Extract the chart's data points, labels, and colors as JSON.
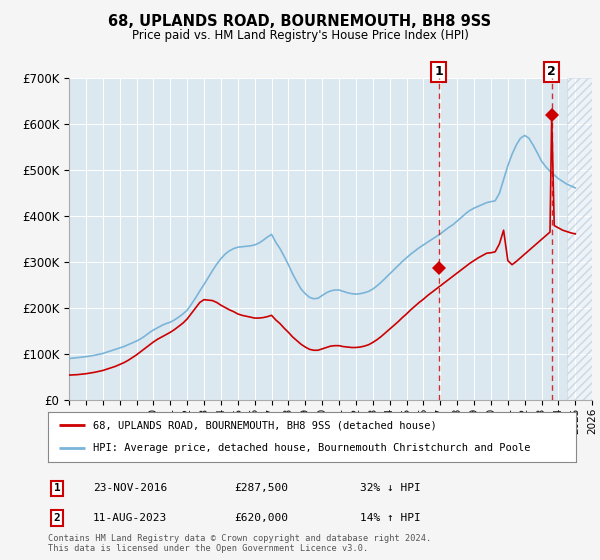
{
  "title": "68, UPLANDS ROAD, BOURNEMOUTH, BH8 9SS",
  "subtitle": "Price paid vs. HM Land Registry's House Price Index (HPI)",
  "footnote": "Contains HM Land Registry data © Crown copyright and database right 2024.\nThis data is licensed under the Open Government Licence v3.0.",
  "legend_line1": "68, UPLANDS ROAD, BOURNEMOUTH, BH8 9SS (detached house)",
  "legend_line2": "HPI: Average price, detached house, Bournemouth Christchurch and Poole",
  "transaction1_date": "23-NOV-2016",
  "transaction1_price": "£287,500",
  "transaction1_hpi": "32% ↓ HPI",
  "transaction2_date": "11-AUG-2023",
  "transaction2_price": "£620,000",
  "transaction2_hpi": "14% ↑ HPI",
  "hpi_color": "#7ab4d8",
  "price_color": "#cc0000",
  "background_color": "#f5f5f5",
  "plot_bg_color": "#dce8f0",
  "hatch_color": "#bbccdd",
  "ylim": [
    0,
    700000
  ],
  "yticks": [
    0,
    100000,
    200000,
    300000,
    400000,
    500000,
    600000,
    700000
  ],
  "transaction1_year": 2016.9,
  "transaction1_value": 287500,
  "transaction2_year": 2023.6,
  "transaction2_value": 620000,
  "hatch_start": 2024.5,
  "xmin": 1995,
  "xmax": 2026,
  "hpi_data_x": [
    1995.0,
    1995.25,
    1995.5,
    1995.75,
    1996.0,
    1996.25,
    1996.5,
    1996.75,
    1997.0,
    1997.25,
    1997.5,
    1997.75,
    1998.0,
    1998.25,
    1998.5,
    1998.75,
    1999.0,
    1999.25,
    1999.5,
    1999.75,
    2000.0,
    2000.25,
    2000.5,
    2000.75,
    2001.0,
    2001.25,
    2001.5,
    2001.75,
    2002.0,
    2002.25,
    2002.5,
    2002.75,
    2003.0,
    2003.25,
    2003.5,
    2003.75,
    2004.0,
    2004.25,
    2004.5,
    2004.75,
    2005.0,
    2005.25,
    2005.5,
    2005.75,
    2006.0,
    2006.25,
    2006.5,
    2006.75,
    2007.0,
    2007.25,
    2007.5,
    2007.75,
    2008.0,
    2008.25,
    2008.5,
    2008.75,
    2009.0,
    2009.25,
    2009.5,
    2009.75,
    2010.0,
    2010.25,
    2010.5,
    2010.75,
    2011.0,
    2011.25,
    2011.5,
    2011.75,
    2012.0,
    2012.25,
    2012.5,
    2012.75,
    2013.0,
    2013.25,
    2013.5,
    2013.75,
    2014.0,
    2014.25,
    2014.5,
    2014.75,
    2015.0,
    2015.25,
    2015.5,
    2015.75,
    2016.0,
    2016.25,
    2016.5,
    2016.75,
    2017.0,
    2017.25,
    2017.5,
    2017.75,
    2018.0,
    2018.25,
    2018.5,
    2018.75,
    2019.0,
    2019.25,
    2019.5,
    2019.75,
    2020.0,
    2020.25,
    2020.5,
    2020.75,
    2021.0,
    2021.25,
    2021.5,
    2021.75,
    2022.0,
    2022.25,
    2022.5,
    2022.75,
    2023.0,
    2023.25,
    2023.5,
    2023.75,
    2024.0,
    2024.25,
    2024.5,
    2024.75,
    2025.0
  ],
  "hpi_data_y": [
    91000,
    92000,
    93000,
    94000,
    95000,
    96500,
    98000,
    100000,
    102000,
    105000,
    108000,
    111000,
    114000,
    117000,
    121000,
    125000,
    129000,
    134000,
    140000,
    147000,
    153000,
    158000,
    163000,
    167000,
    170000,
    175000,
    181000,
    188000,
    196000,
    209000,
    223000,
    238000,
    252000,
    267000,
    282000,
    296000,
    308000,
    318000,
    325000,
    330000,
    333000,
    334000,
    335000,
    336000,
    338000,
    342000,
    348000,
    355000,
    361000,
    344000,
    330000,
    313000,
    295000,
    275000,
    258000,
    242000,
    232000,
    224000,
    221000,
    222000,
    228000,
    234000,
    238000,
    240000,
    240000,
    237000,
    234000,
    232000,
    231000,
    232000,
    234000,
    237000,
    242000,
    249000,
    257000,
    266000,
    275000,
    284000,
    293000,
    302000,
    310000,
    318000,
    325000,
    332000,
    338000,
    344000,
    350000,
    356000,
    362000,
    369000,
    376000,
    382000,
    390000,
    398000,
    406000,
    413000,
    418000,
    422000,
    426000,
    430000,
    432000,
    434000,
    450000,
    480000,
    510000,
    535000,
    555000,
    570000,
    576000,
    570000,
    555000,
    538000,
    520000,
    508000,
    498000,
    490000,
    482000,
    476000,
    470000,
    466000,
    462000
  ],
  "price_data_x": [
    1995.0,
    1995.25,
    1995.5,
    1995.75,
    1996.0,
    1996.25,
    1996.5,
    1996.75,
    1997.0,
    1997.25,
    1997.5,
    1997.75,
    1998.0,
    1998.25,
    1998.5,
    1998.75,
    1999.0,
    1999.25,
    1999.5,
    1999.75,
    2000.0,
    2000.25,
    2000.5,
    2000.75,
    2001.0,
    2001.25,
    2001.5,
    2001.75,
    2002.0,
    2002.25,
    2002.5,
    2002.75,
    2003.0,
    2003.25,
    2003.5,
    2003.75,
    2004.0,
    2004.25,
    2004.5,
    2004.75,
    2005.0,
    2005.25,
    2005.5,
    2005.75,
    2006.0,
    2006.25,
    2006.5,
    2006.75,
    2007.0,
    2007.25,
    2007.5,
    2007.75,
    2008.0,
    2008.25,
    2008.5,
    2008.75,
    2009.0,
    2009.25,
    2009.5,
    2009.75,
    2010.0,
    2010.25,
    2010.5,
    2010.75,
    2011.0,
    2011.25,
    2011.5,
    2011.75,
    2012.0,
    2012.25,
    2012.5,
    2012.75,
    2013.0,
    2013.25,
    2013.5,
    2013.75,
    2014.0,
    2014.25,
    2014.5,
    2014.75,
    2015.0,
    2015.25,
    2015.5,
    2015.75,
    2016.0,
    2016.25,
    2016.5,
    2016.75,
    2017.0,
    2017.25,
    2017.5,
    2017.75,
    2018.0,
    2018.25,
    2018.5,
    2018.75,
    2019.0,
    2019.25,
    2019.5,
    2019.75,
    2020.0,
    2020.25,
    2020.5,
    2020.75,
    2021.0,
    2021.25,
    2021.5,
    2021.75,
    2022.0,
    2022.25,
    2022.5,
    2022.75,
    2023.0,
    2023.25,
    2023.5,
    2023.6,
    2023.75,
    2024.0,
    2024.25,
    2024.5,
    2024.75,
    2025.0
  ],
  "price_data_y": [
    55000,
    55500,
    56000,
    57000,
    58000,
    59500,
    61000,
    63000,
    65000,
    68000,
    71000,
    74000,
    78000,
    82000,
    87000,
    93000,
    99000,
    106000,
    113000,
    120000,
    127000,
    133000,
    138000,
    143000,
    148000,
    154000,
    161000,
    168000,
    177000,
    189000,
    201000,
    213000,
    219000,
    218000,
    217000,
    213000,
    207000,
    202000,
    197000,
    193000,
    188000,
    185000,
    183000,
    181000,
    179000,
    179000,
    180000,
    182000,
    185000,
    175000,
    167000,
    157000,
    148000,
    138000,
    130000,
    122000,
    116000,
    111000,
    109000,
    109000,
    112000,
    115000,
    118000,
    119000,
    119000,
    117000,
    116000,
    115000,
    115000,
    116000,
    118000,
    121000,
    126000,
    132000,
    139000,
    147000,
    155000,
    163000,
    171000,
    180000,
    188000,
    197000,
    205000,
    213000,
    220000,
    228000,
    235000,
    242000,
    249000,
    256000,
    263000,
    270000,
    277000,
    284000,
    291000,
    298000,
    304000,
    310000,
    315000,
    320000,
    321000,
    323000,
    340000,
    370000,
    304000,
    295000,
    302000,
    310000,
    318000,
    326000,
    334000,
    342000,
    350000,
    358000,
    366000,
    620000,
    380000,
    375000,
    370000,
    367000,
    364000,
    362000
  ]
}
